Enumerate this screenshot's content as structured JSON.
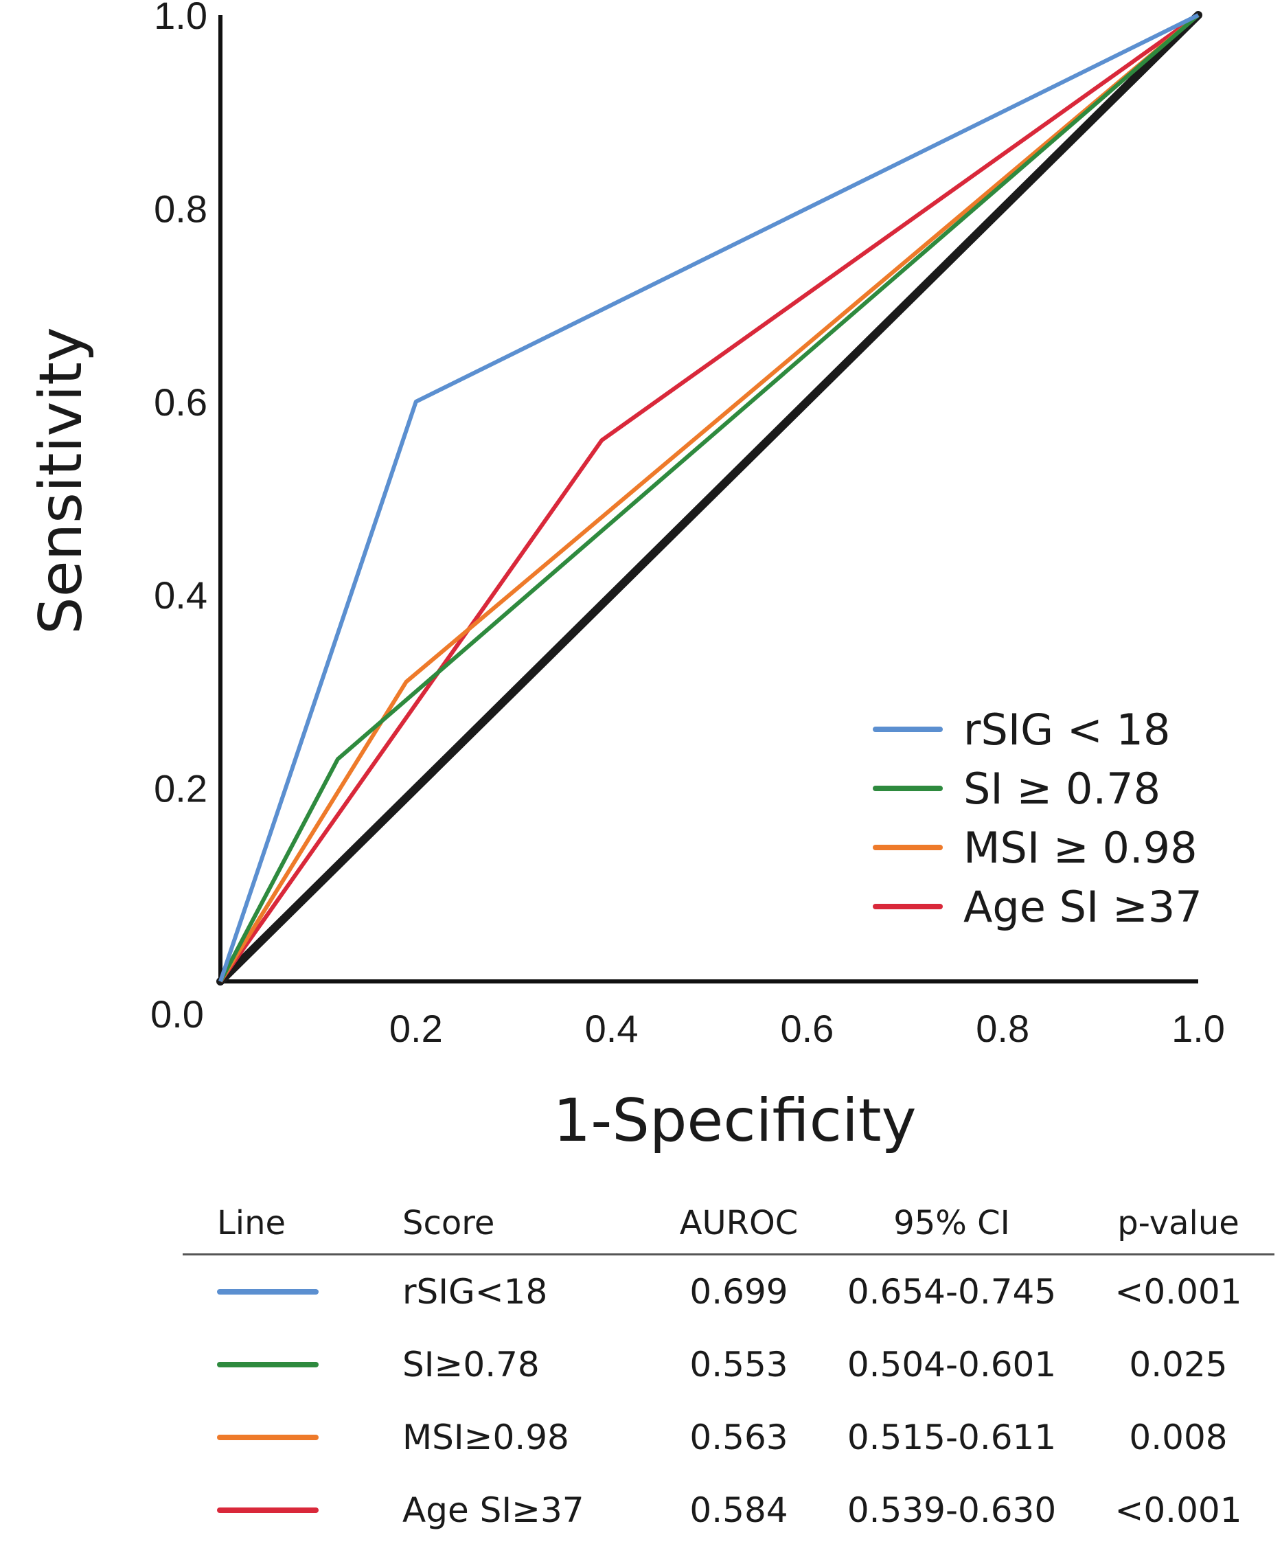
{
  "chart_data": {
    "type": "line",
    "xlabel": "1-Specificity",
    "ylabel": "Sensitivity",
    "xlim": [
      0,
      1
    ],
    "ylim": [
      0,
      1
    ],
    "x_ticks": [
      "0.2",
      "0.4",
      "0.6",
      "0.8",
      "1.0"
    ],
    "y_ticks": [
      "0.2",
      "0.4",
      "0.6",
      "0.8",
      "1.0"
    ],
    "origin_label": "0.0",
    "grid": false,
    "legend_position": "bottom-right",
    "reference_line": {
      "name": "chance",
      "color": "#1a1a1a",
      "points": [
        [
          0,
          0
        ],
        [
          1,
          1
        ]
      ]
    },
    "series": [
      {
        "name": "rSIG < 18",
        "color": "#5b8fd0",
        "points": [
          [
            0,
            0
          ],
          [
            0.2,
            0.6
          ],
          [
            1,
            1
          ]
        ]
      },
      {
        "name": "SI ≥ 0.78",
        "color": "#2e8a3e",
        "points": [
          [
            0,
            0
          ],
          [
            0.12,
            0.23
          ],
          [
            1,
            1
          ]
        ]
      },
      {
        "name": "MSI ≥ 0.98",
        "color": "#ee7a2a",
        "points": [
          [
            0,
            0
          ],
          [
            0.19,
            0.31
          ],
          [
            1,
            1
          ]
        ]
      },
      {
        "name": "Age SI ≥37",
        "color": "#d9283a",
        "points": [
          [
            0,
            0
          ],
          [
            0.39,
            0.56
          ],
          [
            1,
            1
          ]
        ]
      }
    ]
  },
  "table": {
    "headers": {
      "line": "Line",
      "score": "Score",
      "auroc": "AUROC",
      "ci": "95% CI",
      "p": "p-value"
    },
    "rows": [
      {
        "color": "#5b8fd0",
        "score": "rSIG<18",
        "auroc": "0.699",
        "ci": "0.654-0.745",
        "p": "<0.001"
      },
      {
        "color": "#2e8a3e",
        "score": "SI≥0.78",
        "auroc": "0.553",
        "ci": "0.504-0.601",
        "p": "0.025"
      },
      {
        "color": "#ee7a2a",
        "score": "MSI≥0.98",
        "auroc": "0.563",
        "ci": "0.515-0.611",
        "p": "0.008"
      },
      {
        "color": "#d9283a",
        "score": "Age SI≥37",
        "auroc": "0.584",
        "ci": "0.539-0.630",
        "p": "<0.001"
      }
    ]
  }
}
